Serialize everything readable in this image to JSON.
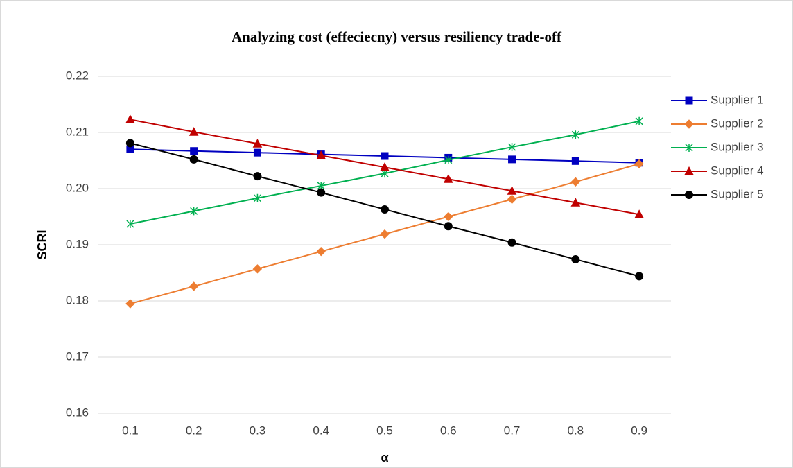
{
  "chart_data": {
    "type": "line",
    "title": "Analyzing cost (effeciecny) versus resiliency trade-off",
    "x_label": "α",
    "y_label": "SCRI",
    "categories": [
      "0.1",
      "0.2",
      "0.3",
      "0.4",
      "0.5",
      "0.6",
      "0.7",
      "0.8",
      "0.9"
    ],
    "ylim": [
      0.16,
      0.22
    ],
    "yticks": [
      0.16,
      0.17,
      0.18,
      0.19,
      {
        "value": 0.2,
        "label": "0.20"
      },
      0.21,
      0.22
    ],
    "grid": true,
    "legend": "right",
    "series": [
      {
        "name": "Supplier 1",
        "color": "#0000c0",
        "marker": "square",
        "values": [
          0.207,
          0.2067,
          0.2064,
          0.2061,
          0.2058,
          0.2055,
          0.2052,
          0.2049,
          0.2046
        ]
      },
      {
        "name": "Supplier 2",
        "color": "#ed7d31",
        "marker": "diamond",
        "values": [
          0.1795,
          0.1826,
          0.1857,
          0.1888,
          0.1919,
          0.195,
          0.1981,
          0.2012,
          0.2044
        ]
      },
      {
        "name": "Supplier 3",
        "color": "#00b050",
        "marker": "asterisk",
        "values": [
          0.1937,
          0.196,
          0.1983,
          0.2005,
          0.2027,
          0.2051,
          0.2074,
          0.2096,
          0.212
        ]
      },
      {
        "name": "Supplier 4",
        "color": "#c00000",
        "marker": "triangle",
        "values": [
          0.2123,
          0.2101,
          0.208,
          0.2059,
          0.2038,
          0.2017,
          0.1996,
          0.1975,
          0.1954
        ]
      },
      {
        "name": "Supplier 5",
        "color": "#000000",
        "marker": "circle",
        "values": [
          0.2081,
          0.2052,
          0.2022,
          0.1993,
          0.1963,
          0.1933,
          0.1904,
          0.1874,
          0.1844
        ]
      }
    ]
  }
}
